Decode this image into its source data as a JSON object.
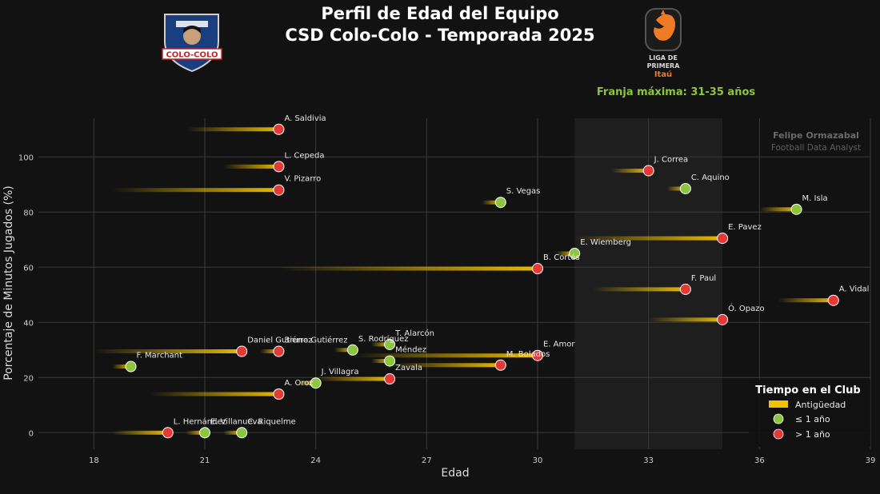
{
  "header": {
    "title_line1": "Perfil de Edad del Equipo",
    "title_line2": "CSD Colo-Colo - Temporada 2025",
    "club_logo_text": "COLO-COLO",
    "league_logo_text": [
      "LIGA DE",
      "PRIMERA",
      "Itaú"
    ],
    "peak_band_label": "Franja máxima: 31-35 años"
  },
  "watermark": {
    "name": "Felipe Ormazabal",
    "role": "Football Data Analyst"
  },
  "colors": {
    "background": "#121212",
    "grid": "#3a3a3a",
    "band": "#1e1e1e",
    "tenure": "#f2c200",
    "new_player": "#8cc63f",
    "veteran": "#e53935",
    "accent_green": "#8cc63f",
    "text": "#eaeaea"
  },
  "legend": {
    "title": "Tiempo en el Club",
    "items": [
      {
        "label": "Antigüedad",
        "kind": "bar"
      },
      {
        "label": "≤ 1 año",
        "kind": "new"
      },
      {
        "label": "> 1 año",
        "kind": "vet"
      }
    ]
  },
  "chart_data": {
    "type": "scatter",
    "xlabel": "Edad",
    "ylabel": "Porcentaje de Minutos Jugados (%)",
    "xlim": [
      16.5,
      39
    ],
    "ylim": [
      -6,
      114
    ],
    "xticks": [
      18,
      21,
      24,
      27,
      30,
      33,
      36,
      39
    ],
    "yticks": [
      0,
      20,
      40,
      60,
      80,
      100
    ],
    "grid": true,
    "peak_band": [
      31,
      35
    ],
    "legend_position": "bottom-right",
    "points": [
      {
        "name": "A. Saldivia",
        "age": 23,
        "minutes_pct": 110,
        "tenure_years": 2.5,
        "group": "vet"
      },
      {
        "name": "L. Cepeda",
        "age": 23,
        "minutes_pct": 96.5,
        "tenure_years": 1.5,
        "group": "vet"
      },
      {
        "name": "V. Pizarro",
        "age": 23,
        "minutes_pct": 88,
        "tenure_years": 4.5,
        "group": "vet"
      },
      {
        "name": "J. Correa",
        "age": 33,
        "minutes_pct": 95,
        "tenure_years": 1,
        "group": "vet"
      },
      {
        "name": "C. Aquino",
        "age": 34,
        "minutes_pct": 88.5,
        "tenure_years": 0.5,
        "group": "new"
      },
      {
        "name": "S. Vegas",
        "age": 29,
        "minutes_pct": 83.5,
        "tenure_years": 0.5,
        "group": "new"
      },
      {
        "name": "M. Isla",
        "age": 37,
        "minutes_pct": 81,
        "tenure_years": 1,
        "group": "new"
      },
      {
        "name": "E. Pavez",
        "age": 35,
        "minutes_pct": 70.5,
        "tenure_years": 4,
        "group": "vet"
      },
      {
        "name": "E. Wiemberg",
        "age": 31,
        "minutes_pct": 65,
        "tenure_years": 0.5,
        "group": "new"
      },
      {
        "name": "B. Cortés",
        "age": 30,
        "minutes_pct": 59.5,
        "tenure_years": 7,
        "group": "vet"
      },
      {
        "name": "F. Paul",
        "age": 34,
        "minutes_pct": 52,
        "tenure_years": 2.5,
        "group": "vet"
      },
      {
        "name": "A. Vidal",
        "age": 38,
        "minutes_pct": 48,
        "tenure_years": 1.5,
        "group": "vet"
      },
      {
        "name": "Ó. Opazo",
        "age": 35,
        "minutes_pct": 41,
        "tenure_years": 2,
        "group": "vet"
      },
      {
        "name": "T. Alarcón",
        "age": 26,
        "minutes_pct": 32,
        "tenure_years": 0.5,
        "group": "new"
      },
      {
        "name": "S. Rodríguez",
        "age": 25,
        "minutes_pct": 30,
        "tenure_years": 0.5,
        "group": "new"
      },
      {
        "name": "Daniel Gutiérrez",
        "age": 22,
        "minutes_pct": 29.5,
        "tenure_years": 4,
        "group": "vet"
      },
      {
        "name": "Bruno Gutiérrez",
        "age": 23,
        "minutes_pct": 29.5,
        "tenure_years": 0.5,
        "group": "vet"
      },
      {
        "name": "F. Marchant",
        "age": 19,
        "minutes_pct": 24,
        "tenure_years": 0.5,
        "group": "new"
      },
      {
        "name": "E. Amor",
        "age": 30,
        "minutes_pct": 28,
        "tenure_years": 5,
        "group": "vet"
      },
      {
        "name": "Méndez",
        "age": 26,
        "minutes_pct": 26,
        "tenure_years": 0.5,
        "group": "new"
      },
      {
        "name": "M. Bolados",
        "age": 29,
        "minutes_pct": 24.5,
        "tenure_years": 3,
        "group": "vet"
      },
      {
        "name": "Zavala",
        "age": 26,
        "minutes_pct": 19.5,
        "tenure_years": 2,
        "group": "vet"
      },
      {
        "name": "J. Villagra",
        "age": 24,
        "minutes_pct": 18,
        "tenure_years": 0.5,
        "group": "new"
      },
      {
        "name": "A. Oroz",
        "age": 23,
        "minutes_pct": 14,
        "tenure_years": 3.5,
        "group": "vet"
      },
      {
        "name": "L. Hernández",
        "age": 20,
        "minutes_pct": 0,
        "tenure_years": 1.5,
        "group": "vet"
      },
      {
        "name": "E. Villanueva",
        "age": 21,
        "minutes_pct": 0,
        "tenure_years": 0.5,
        "group": "new"
      },
      {
        "name": "C. Riquelme",
        "age": 22,
        "minutes_pct": 0,
        "tenure_years": 0.5,
        "group": "new"
      }
    ]
  }
}
